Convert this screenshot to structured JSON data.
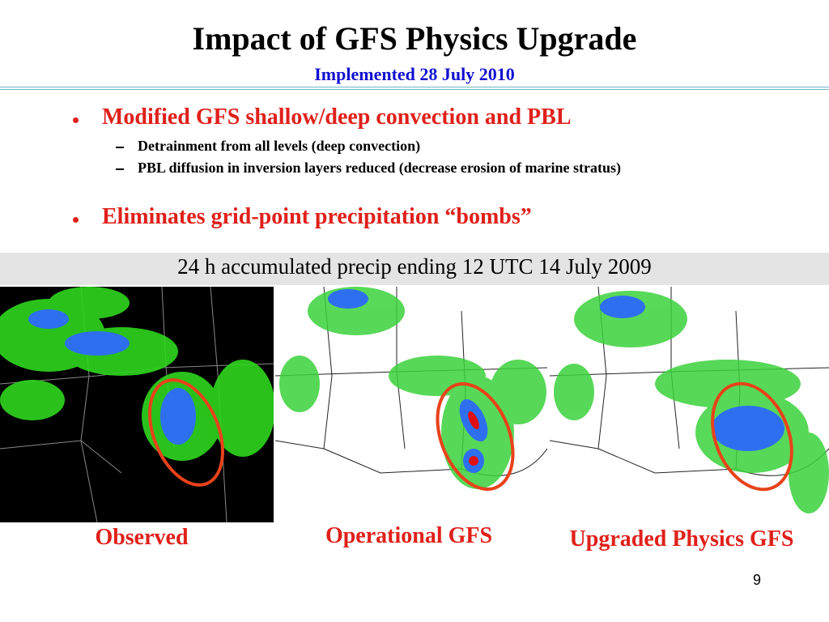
{
  "header": {
    "title": "Impact of GFS Physics Upgrade",
    "subtitle": "Implemented 28 July 2010"
  },
  "bullets": [
    {
      "text": "Modified GFS shallow/deep convection and PBL",
      "subitems": [
        "Detrainment from all levels (deep convection)",
        "PBL diffusion in inversion layers reduced (decrease erosion of marine stratus)"
      ]
    },
    {
      "text": "Eliminates grid-point precipitation “bombs”"
    }
  ],
  "caption": "24 h accumulated precip ending 12 UTC 14 July 2009",
  "panels": [
    {
      "label": "Observed"
    },
    {
      "label": "Operational GFS"
    },
    {
      "label": "Upgraded Physics GFS"
    }
  ],
  "page_number": "9"
}
